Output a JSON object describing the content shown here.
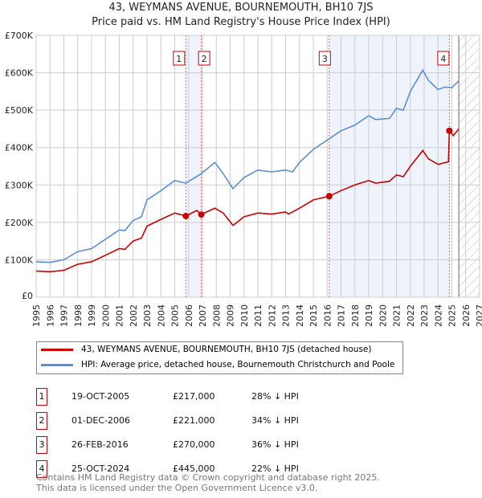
{
  "chart_data": {
    "type": "line",
    "title": "43, WEYMANS AVENUE, BOURNEMOUTH, BH10 7JS",
    "subtitle": "Price paid vs. HM Land Registry's House Price Index (HPI)",
    "xlim": [
      1995,
      2027
    ],
    "ylim": [
      0,
      700000
    ],
    "x_ticks": [
      "1995",
      "1996",
      "1997",
      "1998",
      "1999",
      "2000",
      "2001",
      "2002",
      "2003",
      "2004",
      "2005",
      "2006",
      "2007",
      "2008",
      "2009",
      "2010",
      "2011",
      "2012",
      "2013",
      "2014",
      "2015",
      "2016",
      "2017",
      "2018",
      "2019",
      "2020",
      "2021",
      "2022",
      "2023",
      "2024",
      "2025",
      "2026",
      "2027"
    ],
    "y_ticks": [
      {
        "v": 0,
        "label": "£0"
      },
      {
        "v": 100000,
        "label": "£100K"
      },
      {
        "v": 200000,
        "label": "£200K"
      },
      {
        "v": 300000,
        "label": "£300K"
      },
      {
        "v": 400000,
        "label": "£400K"
      },
      {
        "v": 500000,
        "label": "£500K"
      },
      {
        "v": 600000,
        "label": "£600K"
      },
      {
        "v": 700000,
        "label": "£700K"
      }
    ],
    "grid": true,
    "forecast_from": 2025.5,
    "series": [
      {
        "name": "43, WEYMANS AVENUE, BOURNEMOUTH, BH10 7JS (detached house)",
        "color": "#cc0000",
        "points": [
          [
            1995,
            70
          ],
          [
            1996,
            68
          ],
          [
            1997,
            72
          ],
          [
            1998,
            88
          ],
          [
            1999,
            95
          ],
          [
            2000,
            112
          ],
          [
            2001,
            130
          ],
          [
            2001.4,
            128
          ],
          [
            2002,
            150
          ],
          [
            2002.6,
            158
          ],
          [
            2003,
            190
          ],
          [
            2004,
            208
          ],
          [
            2005,
            225
          ],
          [
            2005.8,
            217
          ],
          [
            2006.6,
            232
          ],
          [
            2006.9,
            221
          ],
          [
            2007.9,
            238
          ],
          [
            2008.5,
            225
          ],
          [
            2009.2,
            192
          ],
          [
            2010,
            215
          ],
          [
            2011,
            225
          ],
          [
            2012,
            222
          ],
          [
            2013,
            228
          ],
          [
            2013.2,
            222
          ],
          [
            2014,
            238
          ],
          [
            2015,
            260
          ],
          [
            2016.15,
            270
          ],
          [
            2017,
            285
          ],
          [
            2018,
            300
          ],
          [
            2019,
            312
          ],
          [
            2019.5,
            305
          ],
          [
            2020.5,
            310
          ],
          [
            2021,
            327
          ],
          [
            2021.5,
            322
          ],
          [
            2022,
            350
          ],
          [
            2022.9,
            392
          ],
          [
            2023.3,
            370
          ],
          [
            2024,
            355
          ],
          [
            2024.75,
            362
          ],
          [
            2024.82,
            445
          ],
          [
            2025.1,
            432
          ],
          [
            2025.5,
            450
          ]
        ]
      },
      {
        "name": "HPI: Average price, detached house, Bournemouth Christchurch and Poole",
        "color": "#5b8ed6",
        "points": [
          [
            1995,
            95
          ],
          [
            1996,
            93
          ],
          [
            1997,
            100
          ],
          [
            1998,
            122
          ],
          [
            1999,
            130
          ],
          [
            2000,
            155
          ],
          [
            2001,
            180
          ],
          [
            2001.4,
            178
          ],
          [
            2002,
            205
          ],
          [
            2002.6,
            215
          ],
          [
            2003,
            260
          ],
          [
            2004,
            285
          ],
          [
            2005,
            312
          ],
          [
            2005.8,
            305
          ],
          [
            2006.9,
            330
          ],
          [
            2007.9,
            360
          ],
          [
            2008.5,
            330
          ],
          [
            2009.2,
            290
          ],
          [
            2010,
            320
          ],
          [
            2011,
            340
          ],
          [
            2012,
            335
          ],
          [
            2013,
            340
          ],
          [
            2013.5,
            335
          ],
          [
            2014,
            360
          ],
          [
            2015,
            395
          ],
          [
            2016,
            420
          ],
          [
            2017,
            445
          ],
          [
            2018,
            460
          ],
          [
            2019,
            485
          ],
          [
            2019.5,
            475
          ],
          [
            2020.5,
            478
          ],
          [
            2021,
            505
          ],
          [
            2021.5,
            500
          ],
          [
            2022,
            550
          ],
          [
            2022.9,
            607
          ],
          [
            2023.3,
            580
          ],
          [
            2024,
            555
          ],
          [
            2024.5,
            562
          ],
          [
            2025,
            560
          ],
          [
            2025.5,
            578
          ]
        ]
      }
    ],
    "sales": [
      {
        "n": "1",
        "date": "19-OCT-2005",
        "x": 2005.8,
        "price": "£217,000",
        "value": 217,
        "hpi": "28% ↓ HPI"
      },
      {
        "n": "2",
        "date": "01-DEC-2006",
        "x": 2006.92,
        "price": "£221,000",
        "value": 221,
        "hpi": "34% ↓ HPI"
      },
      {
        "n": "3",
        "date": "26-FEB-2016",
        "x": 2016.15,
        "price": "£270,000",
        "value": 270,
        "hpi": "36% ↓ HPI"
      },
      {
        "n": "4",
        "date": "25-OCT-2024",
        "x": 2024.82,
        "price": "£445,000",
        "value": 445,
        "hpi": "22% ↓ HPI"
      }
    ]
  },
  "footer": {
    "line1": "Contains HM Land Registry data © Crown copyright and database right 2025.",
    "line2": "This data is licensed under the Open Government Licence v3.0."
  }
}
